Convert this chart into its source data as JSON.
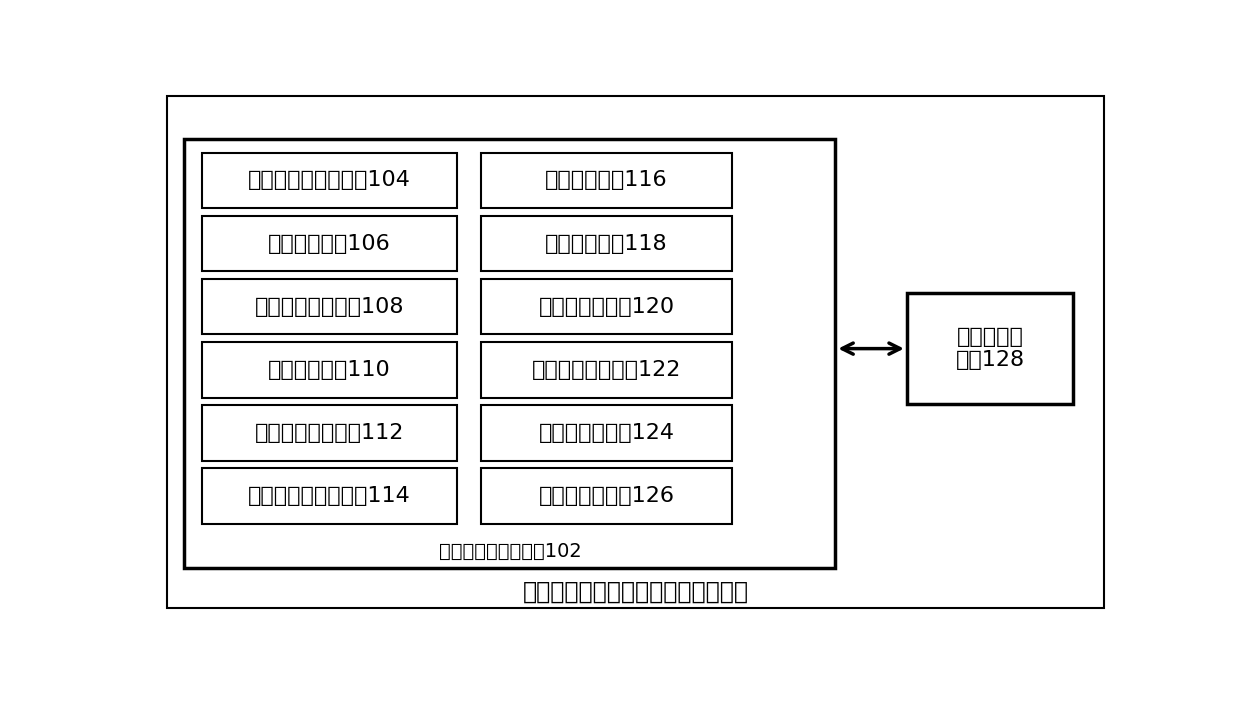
{
  "title": "用于工控机的钢包底吹氩的控制系统",
  "outer_box_label": "工控机吹氩控制模块102",
  "right_box_label": "工控机传输\n模块128",
  "left_column_boxes": [
    "工控机吹氩启动模块104",
    "信息获取模块106",
    "数学模型分配模块108",
    "第一计算模块110",
    "吹氩模式选择模块112",
    "工控机吹氩关闭模块114"
  ],
  "right_column_boxes": [
    "第二计算模块116",
    "第三计算模块118",
    "主画面显示模块120",
    "控制方式选择模块122",
    "设定值显示模块124",
    "设定值输入模块126"
  ],
  "bg_color": "#ffffff",
  "box_edge_color": "#000000",
  "text_color": "#000000",
  "font_size": 16,
  "title_font_size": 17,
  "label_font_size": 14
}
